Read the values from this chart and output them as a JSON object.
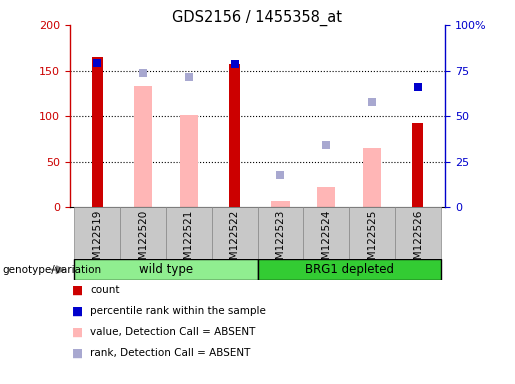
{
  "title": "GDS2156 / 1455358_at",
  "samples": [
    "GSM122519",
    "GSM122520",
    "GSM122521",
    "GSM122522",
    "GSM122523",
    "GSM122524",
    "GSM122525",
    "GSM122526"
  ],
  "red_bars": [
    165,
    0,
    0,
    157,
    0,
    0,
    0,
    93
  ],
  "pink_bars": [
    0,
    133,
    101,
    0,
    7,
    22,
    65,
    0
  ],
  "blue_squares_left": [
    158,
    0,
    0,
    157,
    0,
    0,
    0,
    132
  ],
  "lavender_squares_left": [
    0,
    147,
    143,
    0,
    35,
    68,
    115,
    0
  ],
  "ylim_left": [
    0,
    200
  ],
  "ylim_right": [
    0,
    100
  ],
  "yticks_left": [
    0,
    50,
    100,
    150,
    200
  ],
  "yticks_right": [
    0,
    25,
    50,
    75,
    100
  ],
  "yticklabels_right": [
    "0",
    "25",
    "50",
    "75",
    "100%"
  ],
  "left_axis_color": "#cc0000",
  "right_axis_color": "#0000cc",
  "bar_width": 0.4,
  "wt_color": "#90ee90",
  "brg_color": "#33cc33",
  "tick_bg": "#c8c8c8"
}
